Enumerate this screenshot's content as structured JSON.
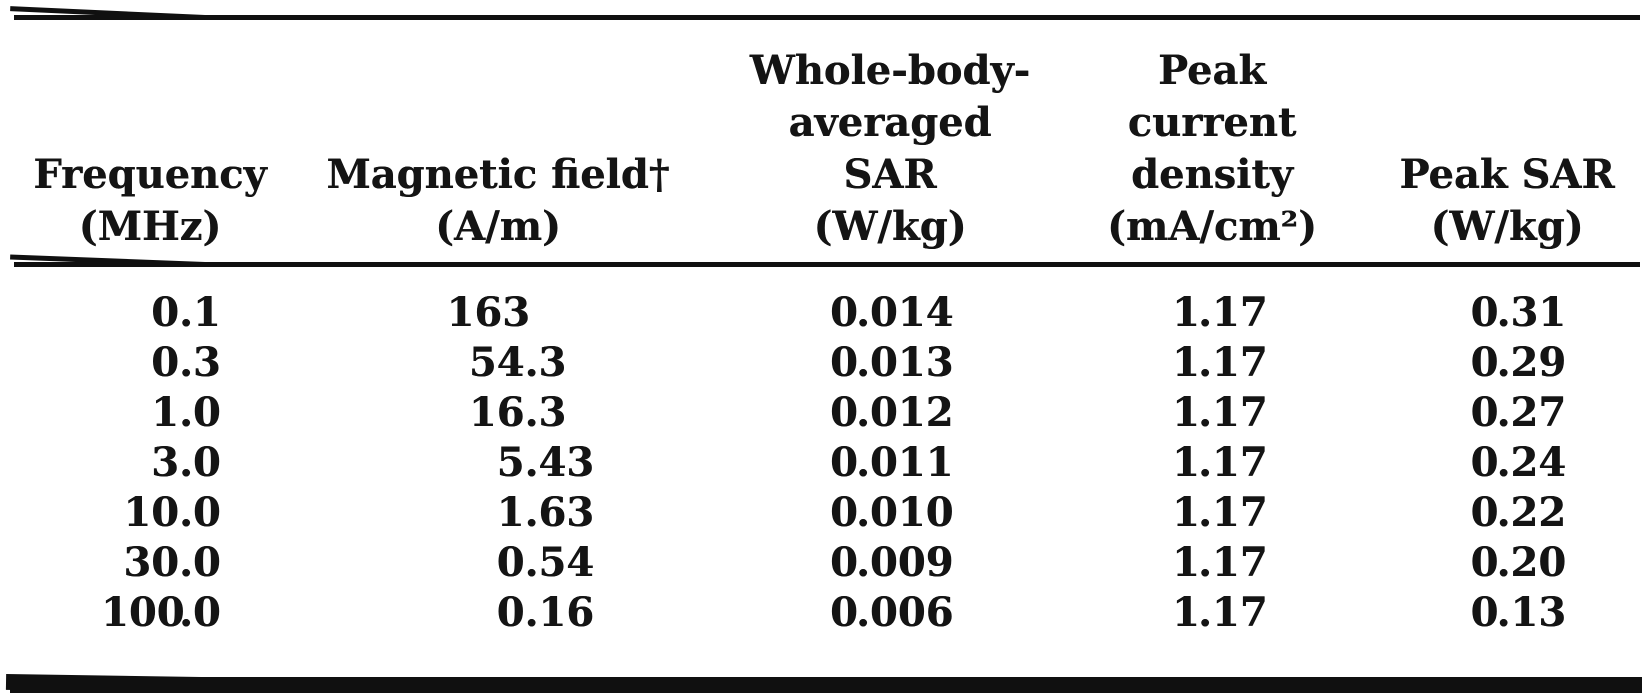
{
  "page": {
    "background": "#ffffff",
    "ink_color": "#141414"
  },
  "table": {
    "columns": [
      {
        "id": "frequency",
        "header_lines": [
          "Frequency",
          "(MHz)"
        ]
      },
      {
        "id": "magnetic-field",
        "header_lines": [
          "Magnetic field†",
          "(A/m)"
        ]
      },
      {
        "id": "whole-body-averaged-sar",
        "header_lines": [
          "Whole-body-",
          "averaged",
          "SAR",
          "(W/kg)"
        ]
      },
      {
        "id": "peak-current-density",
        "header_lines": [
          "Peak",
          "current",
          "density",
          "(mA/cm²)"
        ]
      },
      {
        "id": "peak-sar",
        "header_lines": [
          "Peak SAR",
          "(W/kg)"
        ]
      }
    ],
    "rows": [
      [
        "0.1",
        "163",
        "0.014",
        "1.17",
        "0.31"
      ],
      [
        "0.3",
        "54.3",
        "0.013",
        "1.17",
        "0.29"
      ],
      [
        "1.0",
        "16.3",
        "0.012",
        "1.17",
        "0.27"
      ],
      [
        "3.0",
        "5.43",
        "0.011",
        "1.17",
        "0.24"
      ],
      [
        "10.0",
        "1.63",
        "0.010",
        "1.17",
        "0.22"
      ],
      [
        "30.0",
        "0.54",
        "0.009",
        "1.17",
        "0.20"
      ],
      [
        "100.0",
        "0.16",
        "0.006",
        "1.17",
        "0.13"
      ]
    ]
  }
}
